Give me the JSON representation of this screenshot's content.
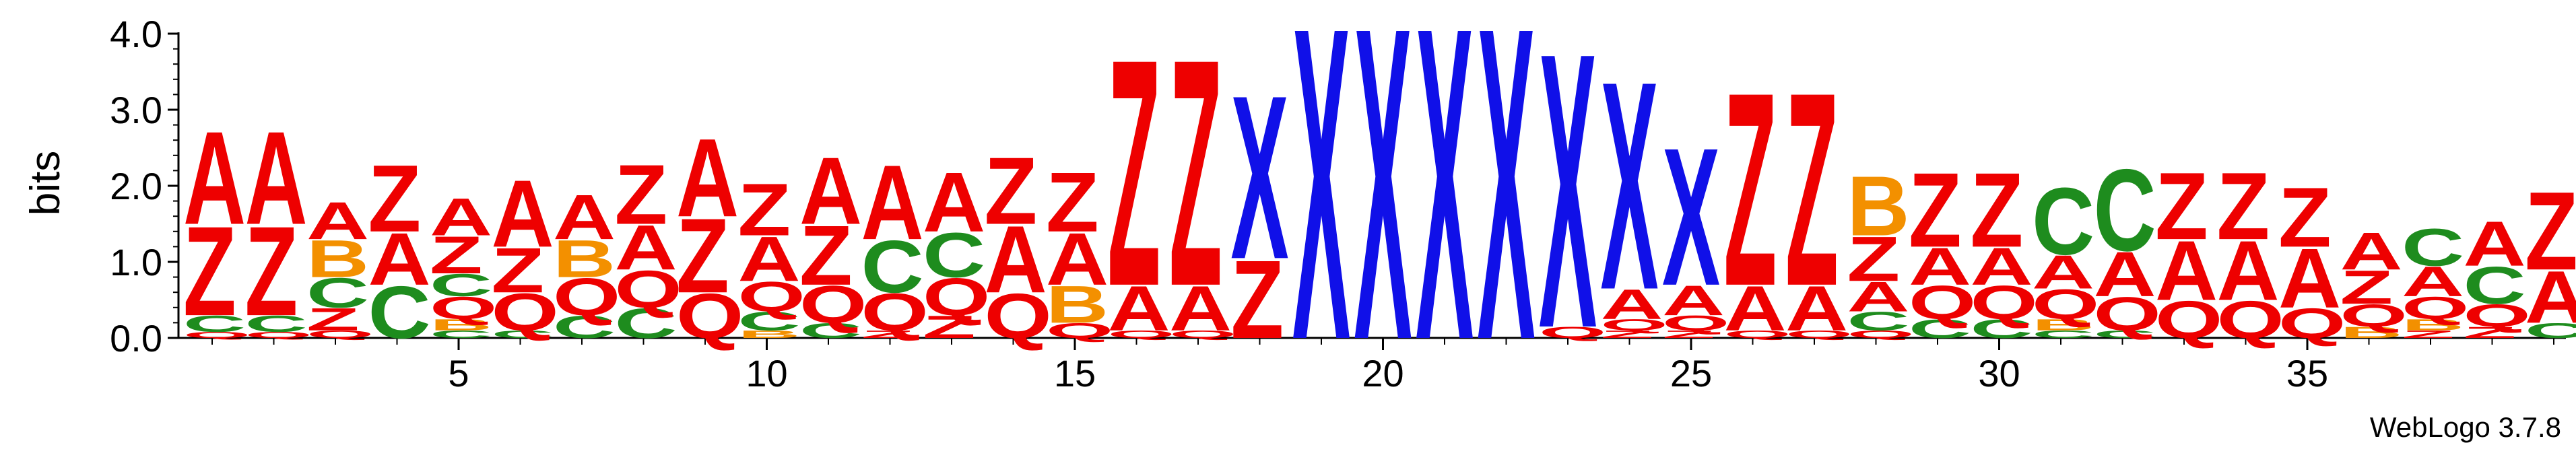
{
  "chart_data": {
    "type": "sequence_logo",
    "ylabel": "bits",
    "ylim": [
      0,
      4.0
    ],
    "y_ticks": [
      "0.0",
      "1.0",
      "2.0",
      "3.0",
      "4.0"
    ],
    "x_ticks": [
      5,
      10,
      15,
      20,
      25,
      30,
      35
    ],
    "credit": "WebLogo 3.7.8",
    "colors": {
      "A": "#ee0000",
      "Z": "#ee0000",
      "Q": "#ee0000",
      "B": "#f39000",
      "C": "#1e8c1e",
      "X": "#1010e8"
    },
    "positions": [
      {
        "pos": 1,
        "stack": [
          [
            "Q",
            0.08
          ],
          [
            "C",
            0.22
          ],
          [
            "Z",
            1.2
          ],
          [
            "A",
            1.25
          ]
        ]
      },
      {
        "pos": 2,
        "stack": [
          [
            "Q",
            0.08
          ],
          [
            "C",
            0.22
          ],
          [
            "Z",
            1.2
          ],
          [
            "A",
            1.25
          ]
        ]
      },
      {
        "pos": 3,
        "stack": [
          [
            "Q",
            0.1
          ],
          [
            "Z",
            0.3
          ],
          [
            "C",
            0.4
          ],
          [
            "B",
            0.5
          ],
          [
            "A",
            0.5
          ]
        ]
      },
      {
        "pos": 4,
        "stack": [
          [
            "C",
            0.7
          ],
          [
            "A",
            0.7
          ],
          [
            "Z",
            0.9
          ]
        ]
      },
      {
        "pos": 5,
        "stack": [
          [
            "C",
            0.1
          ],
          [
            "B",
            0.15
          ],
          [
            "Q",
            0.3
          ],
          [
            "C",
            0.3
          ],
          [
            "Z",
            0.5
          ],
          [
            "A",
            0.5
          ]
        ]
      },
      {
        "pos": 6,
        "stack": [
          [
            "C",
            0.1
          ],
          [
            "Q",
            0.5
          ],
          [
            "Z",
            0.6
          ],
          [
            "A",
            0.9
          ]
        ]
      },
      {
        "pos": 7,
        "stack": [
          [
            "C",
            0.3
          ],
          [
            "Q",
            0.5
          ],
          [
            "B",
            0.5
          ],
          [
            "A",
            0.6
          ]
        ]
      },
      {
        "pos": 8,
        "stack": [
          [
            "C",
            0.4
          ],
          [
            "Q",
            0.5
          ],
          [
            "A",
            0.6
          ],
          [
            "Z",
            0.8
          ]
        ]
      },
      {
        "pos": 9,
        "stack": [
          [
            "Q",
            0.6
          ],
          [
            "Z",
            1.0
          ],
          [
            "A",
            1.05
          ]
        ]
      },
      {
        "pos": 10,
        "stack": [
          [
            "B",
            0.1
          ],
          [
            "C",
            0.25
          ],
          [
            "Q",
            0.4
          ],
          [
            "A",
            0.6
          ],
          [
            "Z",
            0.7
          ]
        ]
      },
      {
        "pos": 11,
        "stack": [
          [
            "C",
            0.2
          ],
          [
            "Q",
            0.5
          ],
          [
            "Z",
            0.8
          ],
          [
            "A",
            0.9
          ]
        ]
      },
      {
        "pos": 12,
        "stack": [
          [
            "Z",
            0.1
          ],
          [
            "Q",
            0.5
          ],
          [
            "C",
            0.7
          ],
          [
            "A",
            1.0
          ]
        ]
      },
      {
        "pos": 13,
        "stack": [
          [
            "Z",
            0.3
          ],
          [
            "Q",
            0.5
          ],
          [
            "C",
            0.6
          ],
          [
            "A",
            0.8
          ]
        ]
      },
      {
        "pos": 14,
        "stack": [
          [
            "Q",
            0.6
          ],
          [
            "A",
            0.9
          ],
          [
            "Z",
            0.9
          ]
        ]
      },
      {
        "pos": 15,
        "stack": [
          [
            "Q",
            0.2
          ],
          [
            "B",
            0.5
          ],
          [
            "A",
            0.7
          ],
          [
            "Z",
            0.8
          ]
        ]
      },
      {
        "pos": 16,
        "stack": [
          [
            "Q",
            0.1
          ],
          [
            "A",
            0.6
          ],
          [
            "Z",
            3.05
          ]
        ]
      },
      {
        "pos": 17,
        "stack": [
          [
            "Q",
            0.1
          ],
          [
            "A",
            0.6
          ],
          [
            "Z",
            3.05
          ]
        ]
      },
      {
        "pos": 18,
        "stack": [
          [
            "Z",
            1.05
          ],
          [
            "X",
            2.2
          ]
        ]
      },
      {
        "pos": 19,
        "stack": [
          [
            "X",
            4.2
          ]
        ]
      },
      {
        "pos": 20,
        "stack": [
          [
            "X",
            4.2
          ]
        ]
      },
      {
        "pos": 21,
        "stack": [
          [
            "X",
            4.2
          ]
        ]
      },
      {
        "pos": 22,
        "stack": [
          [
            "X",
            4.2
          ]
        ]
      },
      {
        "pos": 23,
        "stack": [
          [
            "Q",
            0.15
          ],
          [
            "X",
            3.7
          ]
        ]
      },
      {
        "pos": 24,
        "stack": [
          [
            "Z",
            0.1
          ],
          [
            "Q",
            0.15
          ],
          [
            "A",
            0.4
          ],
          [
            "X",
            2.8
          ]
        ]
      },
      {
        "pos": 25,
        "stack": [
          [
            "Z",
            0.1
          ],
          [
            "Q",
            0.2
          ],
          [
            "A",
            0.4
          ],
          [
            "X",
            1.85
          ]
        ]
      },
      {
        "pos": 26,
        "stack": [
          [
            "Q",
            0.1
          ],
          [
            "A",
            0.6
          ],
          [
            "Z",
            2.6
          ]
        ]
      },
      {
        "pos": 27,
        "stack": [
          [
            "Q",
            0.1
          ],
          [
            "A",
            0.6
          ],
          [
            "Z",
            2.6
          ]
        ]
      },
      {
        "pos": 28,
        "stack": [
          [
            "Q",
            0.1
          ],
          [
            "C",
            0.25
          ],
          [
            "A",
            0.4
          ],
          [
            "Z",
            0.6
          ],
          [
            "B",
            0.8
          ]
        ]
      },
      {
        "pos": 29,
        "stack": [
          [
            "C",
            0.25
          ],
          [
            "Q",
            0.45
          ],
          [
            "A",
            0.5
          ],
          [
            "Z",
            1.0
          ]
        ]
      },
      {
        "pos": 30,
        "stack": [
          [
            "C",
            0.25
          ],
          [
            "Q",
            0.45
          ],
          [
            "A",
            0.5
          ],
          [
            "Z",
            1.0
          ]
        ]
      },
      {
        "pos": 31,
        "stack": [
          [
            "C",
            0.1
          ],
          [
            "B",
            0.15
          ],
          [
            "Q",
            0.4
          ],
          [
            "A",
            0.45
          ],
          [
            "C",
            0.9
          ]
        ]
      },
      {
        "pos": 32,
        "stack": [
          [
            "C",
            0.1
          ],
          [
            "Q",
            0.45
          ],
          [
            "A",
            0.6
          ],
          [
            "C",
            1.1
          ]
        ]
      },
      {
        "pos": 33,
        "stack": [
          [
            "Q",
            0.5
          ],
          [
            "A",
            0.8
          ],
          [
            "Z",
            0.9
          ]
        ]
      },
      {
        "pos": 34,
        "stack": [
          [
            "Q",
            0.5
          ],
          [
            "A",
            0.8
          ],
          [
            "Z",
            0.9
          ]
        ]
      },
      {
        "pos": 35,
        "stack": [
          [
            "Q",
            0.4
          ],
          [
            "A",
            0.8
          ],
          [
            "Z",
            0.8
          ]
        ]
      },
      {
        "pos": 36,
        "stack": [
          [
            "B",
            0.15
          ],
          [
            "Q",
            0.3
          ],
          [
            "Z",
            0.45
          ],
          [
            "A",
            0.5
          ]
        ]
      },
      {
        "pos": 37,
        "stack": [
          [
            "Z",
            0.1
          ],
          [
            "B",
            0.15
          ],
          [
            "Q",
            0.3
          ],
          [
            "A",
            0.4
          ],
          [
            "C",
            0.5
          ]
        ]
      },
      {
        "pos": 38,
        "stack": [
          [
            "Z",
            0.15
          ],
          [
            "Q",
            0.3
          ],
          [
            "C",
            0.5
          ],
          [
            "A",
            0.6
          ]
        ]
      },
      {
        "pos": 39,
        "stack": [
          [
            "C",
            0.2
          ],
          [
            "A",
            0.7
          ],
          [
            "Z",
            1.05
          ]
        ]
      }
    ]
  }
}
